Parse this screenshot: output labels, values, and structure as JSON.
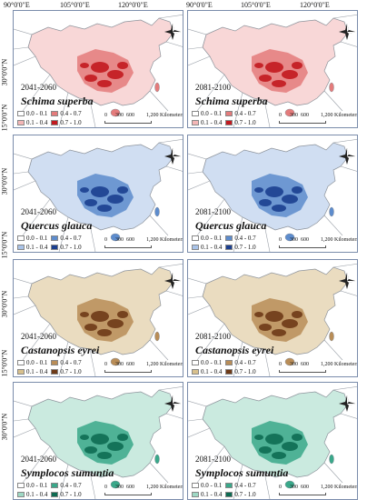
{
  "longitudes": [
    "90°0'0\"E",
    "105°0'0\"E",
    "120°0'0\"E"
  ],
  "latitudes": [
    "30°0'0\"N",
    "15°0'0\"N"
  ],
  "scale": {
    "ticks": [
      "0",
      "300",
      "600",
      "1,200"
    ],
    "unit": "Kilometers"
  },
  "panels": [
    {
      "period": "2041-2060",
      "species": "Schima superba",
      "legend": [
        "0.0 - 0.1",
        "0.4 - 0.7",
        "0.1 - 0.4",
        "0.7 - 1.0"
      ],
      "colors": [
        "#ffffff",
        "#e47b7b",
        "#f3b6b6",
        "#c2191f"
      ]
    },
    {
      "period": "2081-2100",
      "species": "Schima superba",
      "legend": [
        "0.0 - 0.1",
        "0.4 - 0.7",
        "0.1 - 0.4",
        "0.7 - 1.0"
      ],
      "colors": [
        "#ffffff",
        "#e47b7b",
        "#f3b6b6",
        "#c2191f"
      ]
    },
    {
      "period": "2041-2060",
      "species": "Quercus glauca",
      "legend": [
        "0.0 - 0.1",
        "0.4 - 0.7",
        "0.1 - 0.4",
        "0.7 - 1.0"
      ],
      "colors": [
        "#ffffff",
        "#5d8ccd",
        "#a9c3e8",
        "#1b3f8f"
      ]
    },
    {
      "period": "2081-2100",
      "species": "Quercus glauca",
      "legend": [
        "0.0 - 0.1",
        "0.4 - 0.7",
        "0.1 - 0.4",
        "0.7 - 1.0"
      ],
      "colors": [
        "#ffffff",
        "#5d8ccd",
        "#a9c3e8",
        "#1b3f8f"
      ]
    },
    {
      "period": "2041-2060",
      "species": "Castanopsis eyrei",
      "legend": [
        "0.0 - 0.1",
        "0.4 - 0.7",
        "0.1 - 0.4",
        "0.7 - 1.0"
      ],
      "colors": [
        "#ffffff",
        "#b98d57",
        "#d8c08c",
        "#6e3a17"
      ]
    },
    {
      "period": "2081-2100",
      "species": "Castanopsis eyrei",
      "legend": [
        "0.0 - 0.1",
        "0.4 - 0.7",
        "0.1 - 0.4",
        "0.7 - 1.0"
      ],
      "colors": [
        "#ffffff",
        "#b98d57",
        "#d8c08c",
        "#6e3a17"
      ]
    },
    {
      "period": "2041-2060",
      "species": "Symplocos sumuntia",
      "legend": [
        "0.0 - 0.1",
        "0.4 - 0.7",
        "0.1 - 0.4",
        "0.7 - 1.0"
      ],
      "colors": [
        "#ffffff",
        "#3aa88a",
        "#9ed8c4",
        "#0d6b52"
      ]
    },
    {
      "period": "2081-2100",
      "species": "Symplocos sumuntia",
      "legend": [
        "0.0 - 0.1",
        "0.4 - 0.7",
        "0.1 - 0.4",
        "0.7 - 1.0"
      ],
      "colors": [
        "#ffffff",
        "#3aa88a",
        "#9ed8c4",
        "#0d6b52"
      ]
    }
  ]
}
